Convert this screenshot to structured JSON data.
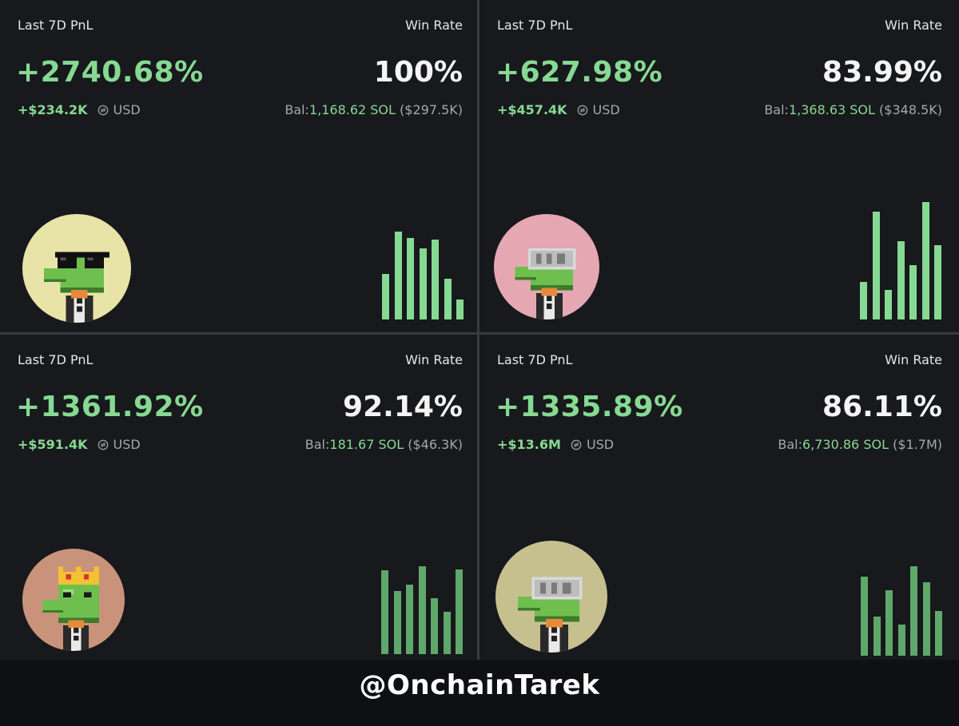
{
  "labels": {
    "pnl": "Last 7D PnL",
    "winrate": "Win Rate",
    "usd": "USD",
    "bal_prefix": "Bal:"
  },
  "colors": {
    "green": "#86d993",
    "bar_bright": "#86d993",
    "bar_dim": "#5fa86b"
  },
  "cards": [
    {
      "pnl_pct": "+2740.68%",
      "usd_amount": "+$234.2K",
      "win_rate": "100%",
      "bal_sol": "1,168.62 SOL",
      "bal_usd": "($297.5K)",
      "avatar": {
        "bg": "#e8e4a8",
        "accessory": "sunglasses"
      },
      "bars": [
        0.52,
        1.0,
        0.93,
        0.81,
        0.91,
        0.46,
        0.23
      ],
      "bar_style": "bright"
    },
    {
      "pnl_pct": "+627.98%",
      "usd_amount": "+$457.4K",
      "win_rate": "83.99%",
      "bal_sol": "1,368.63 SOL",
      "bal_usd": "($348.5K)",
      "avatar": {
        "bg": "#e5a7b2",
        "accessory": "vr-goggles"
      },
      "bars": [
        0.32,
        0.92,
        0.25,
        0.67,
        0.46,
        1.0,
        0.63
      ],
      "bar_style": "bright"
    },
    {
      "pnl_pct": "+1361.92%",
      "usd_amount": "+$591.4K",
      "win_rate": "92.14%",
      "bal_sol": "181.67 SOL",
      "bal_usd": "($46.3K)",
      "avatar": {
        "bg": "#c8937a",
        "accessory": "crown"
      },
      "bars": [
        0.95,
        0.72,
        0.79,
        1.0,
        0.64,
        0.48,
        0.96
      ],
      "bar_style": "dim"
    },
    {
      "pnl_pct": "+1335.89%",
      "usd_amount": "+$13.6M",
      "win_rate": "86.11%",
      "bal_sol": "6,730.86 SOL",
      "bal_usd": "($1.7M)",
      "avatar": {
        "bg": "#c5c08e",
        "accessory": "vr-goggles"
      },
      "bars": [
        0.88,
        0.44,
        0.73,
        0.35,
        1.0,
        0.82,
        0.5
      ],
      "bar_style": "dim"
    }
  ],
  "watermark": "@OnchainTarek"
}
